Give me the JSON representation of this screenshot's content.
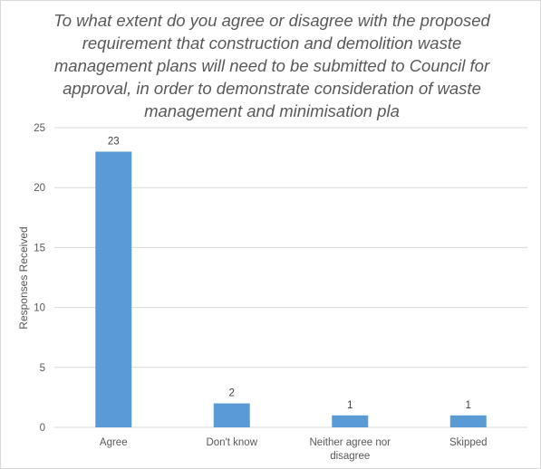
{
  "chart_data": {
    "type": "bar",
    "title": "To what extent do you agree or disagree with the proposed requirement that construction and demolition waste management plans will need to be submitted to Council for approval, in order to demonstrate consideration of waste management and minimisation pla",
    "xlabel": "",
    "ylabel": "Responses Received",
    "categories": [
      "Agree",
      "Don't know",
      "Neither agree nor disagree",
      "Skipped"
    ],
    "category_lines": [
      [
        "Agree"
      ],
      [
        "Don't know"
      ],
      [
        "Neither agree nor",
        "disagree"
      ],
      [
        "Skipped"
      ]
    ],
    "values": [
      23,
      2,
      1,
      1
    ],
    "ylim": [
      0,
      25
    ],
    "yticks": [
      0,
      5,
      10,
      15,
      20,
      25
    ],
    "grid": true,
    "legend": "none",
    "bar_color": "#5b9bd5",
    "grid_color": "#d9d9d9"
  }
}
